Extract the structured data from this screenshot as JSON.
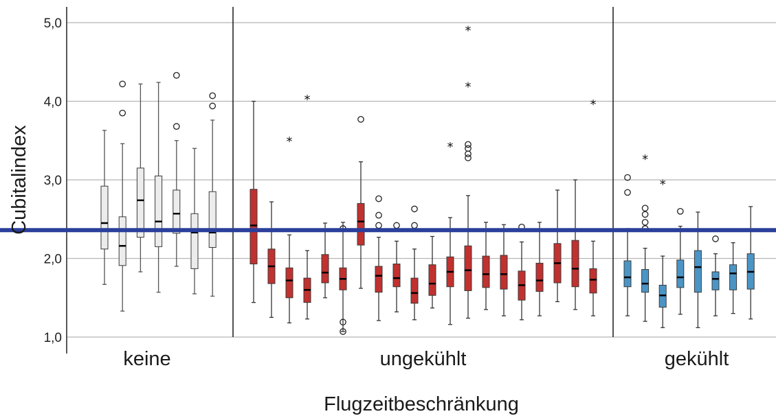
{
  "chart_data": {
    "type": "boxplot",
    "xlabel": "Flugzeitbeschränkung",
    "ylabel": "Cubitalindex",
    "ylim": [
      1.0,
      5.1
    ],
    "yticks": [
      "1,0",
      "2,0",
      "3,0",
      "4,0",
      "5,0"
    ],
    "grid": "horizontal",
    "reference_line": {
      "value": 2.36,
      "color": "#2b3f9b"
    },
    "groups": [
      {
        "label": "keine",
        "color": "#ececec",
        "boxes": [
          {
            "whisker_low": 1.67,
            "q1": 2.12,
            "median": 2.45,
            "q3": 2.92,
            "whisker_high": 3.63,
            "outliers": [],
            "extremes": []
          },
          {
            "whisker_low": 1.33,
            "q1": 1.91,
            "median": 2.16,
            "q3": 2.53,
            "whisker_high": 3.46,
            "outliers": [
              3.85,
              4.22
            ],
            "extremes": []
          },
          {
            "whisker_low": 1.83,
            "q1": 2.27,
            "median": 2.74,
            "q3": 3.15,
            "whisker_high": 4.22,
            "outliers": [],
            "extremes": []
          },
          {
            "whisker_low": 1.57,
            "q1": 2.15,
            "median": 2.47,
            "q3": 3.05,
            "whisker_high": 4.24,
            "outliers": [],
            "extremes": []
          },
          {
            "whisker_low": 1.9,
            "q1": 2.32,
            "median": 2.57,
            "q3": 2.87,
            "whisker_high": 3.5,
            "outliers": [
              3.68,
              4.33
            ],
            "extremes": []
          },
          {
            "whisker_low": 1.55,
            "q1": 1.87,
            "median": 2.33,
            "q3": 2.57,
            "whisker_high": 3.4,
            "outliers": [],
            "extremes": []
          },
          {
            "whisker_low": 1.52,
            "q1": 2.14,
            "median": 2.33,
            "q3": 2.85,
            "whisker_high": 3.76,
            "outliers": [
              3.94,
              4.07
            ],
            "extremes": []
          }
        ]
      },
      {
        "label": "ungekühlt",
        "color": "#c1312f",
        "boxes": [
          {
            "whisker_low": 1.44,
            "q1": 1.93,
            "median": 2.42,
            "q3": 2.88,
            "whisker_high": 4.0,
            "outliers": [],
            "extremes": []
          },
          {
            "whisker_low": 1.25,
            "q1": 1.68,
            "median": 1.9,
            "q3": 2.12,
            "whisker_high": 2.72,
            "outliers": [],
            "extremes": []
          },
          {
            "whisker_low": 1.18,
            "q1": 1.5,
            "median": 1.72,
            "q3": 1.88,
            "whisker_high": 2.3,
            "outliers": [],
            "extremes": [
              3.5
            ]
          },
          {
            "whisker_low": 1.23,
            "q1": 1.44,
            "median": 1.6,
            "q3": 1.75,
            "whisker_high": 2.1,
            "outliers": [],
            "extremes": [
              4.03
            ]
          },
          {
            "whisker_low": 1.5,
            "q1": 1.69,
            "median": 1.82,
            "q3": 2.05,
            "whisker_high": 2.45,
            "outliers": [],
            "extremes": []
          },
          {
            "whisker_low": 1.07,
            "q1": 1.6,
            "median": 1.74,
            "q3": 1.88,
            "whisker_high": 2.46,
            "outliers": [
              2.38,
              1.19,
              1.07
            ],
            "extremes": []
          },
          {
            "whisker_low": 1.62,
            "q1": 2.17,
            "median": 2.47,
            "q3": 2.7,
            "whisker_high": 3.23,
            "outliers": [
              3.77
            ],
            "extremes": []
          },
          {
            "whisker_low": 1.21,
            "q1": 1.57,
            "median": 1.78,
            "q3": 1.9,
            "whisker_high": 2.27,
            "outliers": [
              2.42,
              2.55,
              2.76
            ],
            "extremes": []
          },
          {
            "whisker_low": 1.32,
            "q1": 1.64,
            "median": 1.75,
            "q3": 1.93,
            "whisker_high": 2.22,
            "outliers": [
              2.42
            ],
            "extremes": []
          },
          {
            "whisker_low": 1.22,
            "q1": 1.43,
            "median": 1.56,
            "q3": 1.75,
            "whisker_high": 2.12,
            "outliers": [
              2.42,
              2.63
            ],
            "extremes": []
          },
          {
            "whisker_low": 1.37,
            "q1": 1.53,
            "median": 1.68,
            "q3": 1.92,
            "whisker_high": 2.28,
            "outliers": [],
            "extremes": []
          },
          {
            "whisker_low": 1.16,
            "q1": 1.64,
            "median": 1.83,
            "q3": 2.02,
            "whisker_high": 2.52,
            "outliers": [],
            "extremes": [
              3.43
            ]
          },
          {
            "whisker_low": 1.24,
            "q1": 1.59,
            "median": 1.85,
            "q3": 2.16,
            "whisker_high": 2.8,
            "outliers": [
              3.28,
              3.33,
              3.4,
              3.45
            ],
            "extremes": [
              4.19,
              4.91
            ]
          },
          {
            "whisker_low": 1.35,
            "q1": 1.63,
            "median": 1.8,
            "q3": 2.03,
            "whisker_high": 2.46,
            "outliers": [],
            "extremes": []
          },
          {
            "whisker_low": 1.27,
            "q1": 1.61,
            "median": 1.8,
            "q3": 2.04,
            "whisker_high": 2.43,
            "outliers": [],
            "extremes": []
          },
          {
            "whisker_low": 1.22,
            "q1": 1.47,
            "median": 1.66,
            "q3": 1.84,
            "whisker_high": 2.21,
            "outliers": [
              2.4
            ],
            "extremes": []
          },
          {
            "whisker_low": 1.27,
            "q1": 1.58,
            "median": 1.72,
            "q3": 1.94,
            "whisker_high": 2.46,
            "outliers": [],
            "extremes": []
          },
          {
            "whisker_low": 1.45,
            "q1": 1.69,
            "median": 1.94,
            "q3": 2.19,
            "whisker_high": 2.87,
            "outliers": [],
            "extremes": []
          },
          {
            "whisker_low": 1.35,
            "q1": 1.64,
            "median": 1.87,
            "q3": 2.23,
            "whisker_high": 3.0,
            "outliers": [],
            "extremes": []
          },
          {
            "whisker_low": 1.27,
            "q1": 1.56,
            "median": 1.73,
            "q3": 1.87,
            "whisker_high": 2.22,
            "outliers": [],
            "extremes": [
              3.97
            ]
          }
        ]
      },
      {
        "label": "gekühlt",
        "color": "#4b95c6",
        "boxes": [
          {
            "whisker_low": 1.27,
            "q1": 1.64,
            "median": 1.76,
            "q3": 1.97,
            "whisker_high": 2.38,
            "outliers": [
              2.84,
              3.03
            ],
            "extremes": []
          },
          {
            "whisker_low": 1.2,
            "q1": 1.57,
            "median": 1.68,
            "q3": 1.86,
            "whisker_high": 2.13,
            "outliers": [
              2.38,
              2.46,
              2.56,
              2.64
            ],
            "extremes": [
              3.27
            ]
          },
          {
            "whisker_low": 1.12,
            "q1": 1.38,
            "median": 1.53,
            "q3": 1.66,
            "whisker_high": 2.03,
            "outliers": [],
            "extremes": [
              2.95
            ]
          },
          {
            "whisker_low": 1.29,
            "q1": 1.63,
            "median": 1.76,
            "q3": 1.98,
            "whisker_high": 2.41,
            "outliers": [
              2.6
            ],
            "extremes": []
          },
          {
            "whisker_low": 1.12,
            "q1": 1.57,
            "median": 1.89,
            "q3": 2.1,
            "whisker_high": 2.59,
            "outliers": [],
            "extremes": []
          },
          {
            "whisker_low": 1.27,
            "q1": 1.6,
            "median": 1.74,
            "q3": 1.83,
            "whisker_high": 2.06,
            "outliers": [
              2.25
            ],
            "extremes": []
          },
          {
            "whisker_low": 1.3,
            "q1": 1.6,
            "median": 1.81,
            "q3": 1.92,
            "whisker_high": 2.2,
            "outliers": [],
            "extremes": []
          },
          {
            "whisker_low": 1.23,
            "q1": 1.61,
            "median": 1.83,
            "q3": 2.06,
            "whisker_high": 2.66,
            "outliers": [],
            "extremes": []
          }
        ]
      }
    ]
  }
}
